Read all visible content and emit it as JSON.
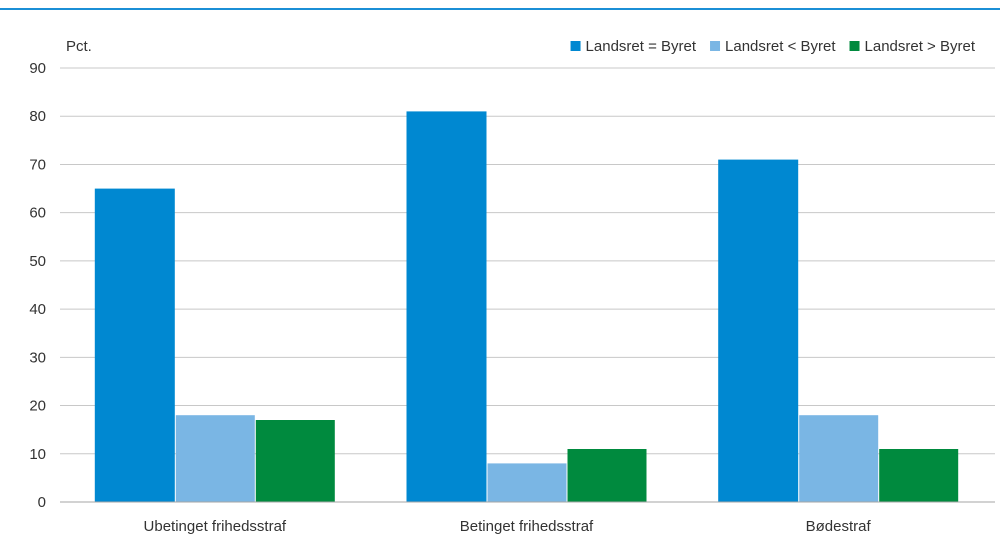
{
  "colors": {
    "top_rule": "#1b8fd6",
    "gridline": "#c8c8c8",
    "baseline": "#a6a6a6",
    "text": "#333333"
  },
  "chart_data": {
    "type": "bar",
    "ylabel": "Pct.",
    "xlabel": "",
    "title": "",
    "categories": [
      "Ubetinget frihedsstraf",
      "Betinget frihedsstraf",
      "Bødestraf"
    ],
    "series": [
      {
        "name": "Landsret = Byret",
        "color": "#0088d1",
        "values": [
          65,
          81,
          71
        ]
      },
      {
        "name": "Landsret < Byret",
        "color": "#7ab6e4",
        "values": [
          18,
          8,
          18
        ]
      },
      {
        "name": "Landsret > Byret",
        "color": "#008a3e",
        "values": [
          17,
          11,
          11
        ]
      }
    ],
    "ylim": [
      0,
      90
    ],
    "yticks": [
      0,
      10,
      20,
      30,
      40,
      50,
      60,
      70,
      80,
      90
    ],
    "grid": true,
    "legend_position": "top-right"
  }
}
